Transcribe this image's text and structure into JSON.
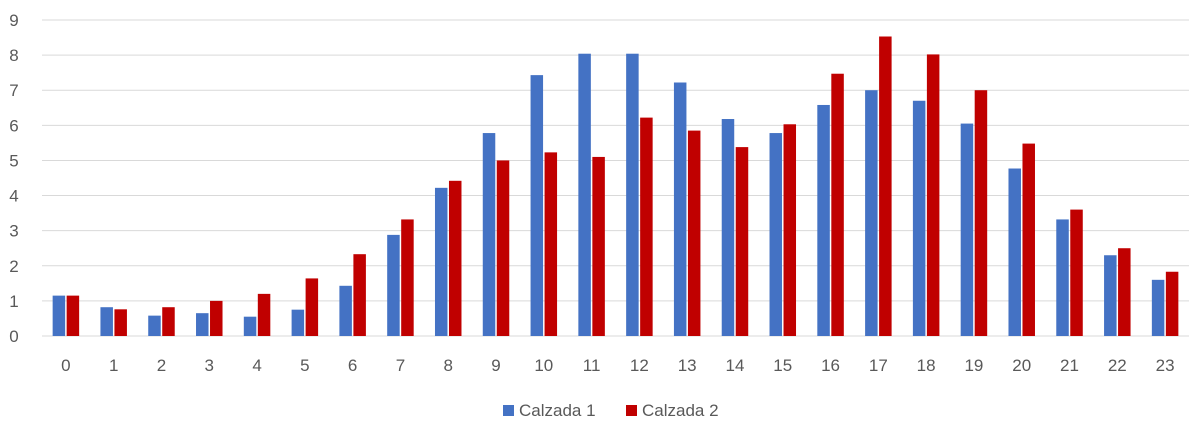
{
  "chart_data": {
    "type": "bar",
    "categories": [
      "0",
      "1",
      "2",
      "3",
      "4",
      "5",
      "6",
      "7",
      "8",
      "9",
      "10",
      "11",
      "12",
      "13",
      "14",
      "15",
      "16",
      "17",
      "18",
      "19",
      "20",
      "21",
      "22",
      "23"
    ],
    "series": [
      {
        "name": "Calzada 1",
        "color": "#4472C4",
        "values": [
          1.15,
          0.82,
          0.58,
          0.65,
          0.55,
          0.75,
          1.43,
          2.88,
          4.22,
          5.78,
          7.43,
          8.04,
          8.04,
          7.22,
          6.18,
          5.78,
          6.58,
          7.0,
          6.7,
          6.05,
          4.77,
          3.32,
          2.3,
          1.6
        ]
      },
      {
        "name": "Calzada 2",
        "color": "#C00000",
        "values": [
          1.15,
          0.76,
          0.82,
          1.0,
          1.2,
          1.64,
          2.33,
          3.32,
          4.42,
          5.0,
          5.23,
          5.1,
          6.22,
          5.85,
          5.38,
          6.03,
          7.47,
          8.53,
          8.02,
          7.0,
          5.48,
          3.6,
          2.5,
          1.83
        ]
      }
    ],
    "ylim": [
      0,
      9
    ],
    "yticks": [
      "0",
      "1",
      "2",
      "3",
      "4",
      "5",
      "6",
      "7",
      "8",
      "9"
    ],
    "grid": true,
    "legend_position": "bottom"
  }
}
